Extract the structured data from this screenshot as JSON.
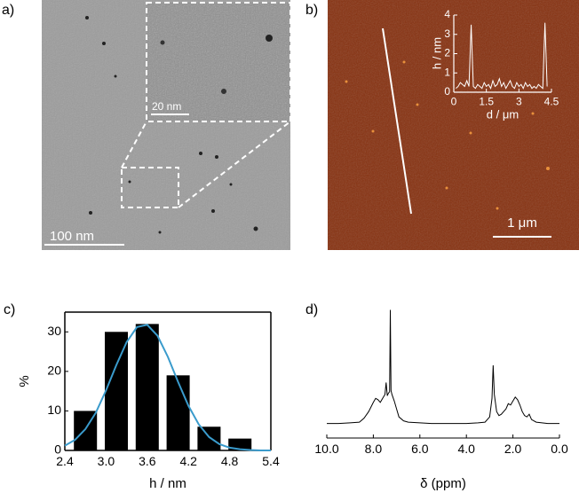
{
  "images": [
    {
      "panel": "a)",
      "scale_bar": "100 nm",
      "inset_scale_bar": "20 nm"
    },
    {
      "panel": "b)",
      "scale_bar": "1 μm"
    }
  ],
  "chart_data": [
    {
      "type": "line",
      "xlabel": "d / μm",
      "ylabel": "h / nm",
      "color": "#ffffff",
      "x": [
        0.1,
        0.2,
        0.3,
        0.4,
        0.5,
        0.6,
        0.7,
        0.8,
        0.9,
        1.0,
        1.1,
        1.2,
        1.3,
        1.4,
        1.5,
        1.6,
        1.7,
        1.8,
        1.9,
        2.0,
        2.1,
        2.2,
        2.3,
        2.4,
        2.5,
        2.6,
        2.7,
        2.8,
        2.9,
        3.0,
        3.1,
        3.2,
        3.3,
        3.4,
        3.5,
        3.6,
        3.7,
        3.8,
        3.9,
        4.0,
        4.1,
        4.2,
        4.3
      ],
      "values": [
        0.2,
        0.3,
        0.5,
        0.4,
        0.3,
        0.6,
        0.3,
        3.5,
        0.3,
        0.2,
        0.4,
        0.3,
        0.2,
        0.5,
        0.3,
        0.4,
        0.2,
        0.6,
        0.3,
        0.4,
        0.7,
        0.3,
        0.5,
        0.2,
        0.4,
        0.6,
        0.3,
        0.2,
        0.5,
        0.3,
        0.4,
        0.2,
        0.5,
        0.3,
        0.4,
        0.2,
        0.3,
        0.2,
        0.4,
        0.3,
        0.2,
        3.6,
        0.3
      ],
      "xlim": [
        0,
        4.5
      ],
      "xticks": [
        0,
        1.5,
        3,
        4.5
      ],
      "ylim": [
        0,
        4
      ],
      "yticks": [
        0,
        1,
        2,
        3,
        4
      ]
    },
    {
      "type": "bar",
      "panel": "c)",
      "xlabel": "h / nm",
      "ylabel": "%",
      "color": "#000000",
      "x": [
        2.7,
        3.15,
        3.6,
        4.05,
        4.5,
        4.95
      ],
      "values": [
        10,
        30,
        32,
        19,
        6,
        3
      ],
      "fit": {
        "color": "#3a9bcc",
        "x": [
          2.4,
          2.55,
          2.7,
          2.85,
          3.0,
          3.15,
          3.3,
          3.45,
          3.6,
          3.75,
          3.9,
          4.05,
          4.2,
          4.35,
          4.5,
          4.65,
          4.8,
          4.95,
          5.1,
          5.25,
          5.4
        ],
        "values": [
          1.2,
          2.7,
          5.4,
          9.5,
          15.2,
          21.6,
          27.4,
          31.2,
          31.8,
          29.0,
          23.7,
          17.3,
          11.3,
          6.6,
          3.4,
          1.6,
          0.7,
          0.3,
          0.1,
          0.0,
          0.0
        ]
      },
      "xlim": [
        2.4,
        5.4
      ],
      "xticks": [
        2.4,
        {
          "value": 3,
          "label": "3.0"
        },
        3.6,
        4.2,
        4.8,
        5.4
      ],
      "ylim": [
        0,
        35
      ],
      "yticks": [
        0,
        10,
        20,
        30
      ]
    },
    {
      "type": "line",
      "panel": "d)",
      "xlabel": "δ (ppm)",
      "color": "#000000",
      "x": [
        10.0,
        9.5,
        9.0,
        8.6,
        8.4,
        8.2,
        8.0,
        7.9,
        7.8,
        7.7,
        7.6,
        7.5,
        7.45,
        7.4,
        7.35,
        7.3,
        7.27,
        7.24,
        7.2,
        7.1,
        7.0,
        6.9,
        6.7,
        6.5,
        6.0,
        5.5,
        5.0,
        4.5,
        4.0,
        3.5,
        3.2,
        3.0,
        2.9,
        2.85,
        2.8,
        2.7,
        2.6,
        2.5,
        2.4,
        2.3,
        2.2,
        2.1,
        2.0,
        1.9,
        1.8,
        1.7,
        1.6,
        1.5,
        1.4,
        1.3,
        1.2,
        1.0,
        0.5,
        0.0
      ],
      "values": [
        11,
        11,
        11.5,
        12,
        15,
        20,
        27,
        30,
        29,
        27,
        30,
        33,
        42,
        32,
        34,
        35,
        97,
        36,
        33,
        28,
        22,
        16,
        13,
        12,
        11.5,
        11,
        11,
        11,
        11,
        11.5,
        12,
        16,
        30,
        55,
        33,
        20,
        17,
        18,
        20,
        22,
        26,
        25,
        28,
        31,
        29,
        25,
        20,
        17,
        16,
        18,
        14,
        12,
        11,
        11
      ],
      "xlim": [
        10,
        0
      ],
      "ylim": [
        0,
        100
      ],
      "xticks": [
        {
          "value": 10,
          "label": "10.0"
        },
        {
          "value": 8,
          "label": "8.0"
        },
        {
          "value": 6,
          "label": "6.0"
        },
        {
          "value": 4,
          "label": "4.0"
        },
        {
          "value": 2,
          "label": "2.0"
        },
        {
          "value": 0,
          "label": "0.0"
        }
      ]
    }
  ]
}
